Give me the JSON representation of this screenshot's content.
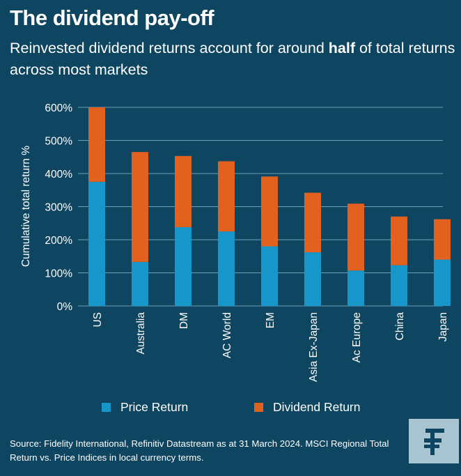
{
  "header": {
    "title": "The dividend pay-off",
    "subtitle_pre": "Reinvested dividend returns account for around ",
    "subtitle_bold": "half",
    "subtitle_post": " of total returns across most markets"
  },
  "chart_data": {
    "type": "bar",
    "stacked": true,
    "categories": [
      "US",
      "Australia",
      "DM",
      "AC World",
      "EM",
      "Asia Ex-Japan",
      "Ac Europe",
      "China",
      "Japan"
    ],
    "series": [
      {
        "name": "Price Return",
        "color": "#1797c9",
        "values": [
          375,
          133,
          238,
          225,
          180,
          162,
          107,
          123,
          140
        ]
      },
      {
        "name": "Dividend Return",
        "color": "#e2611f",
        "values": [
          225,
          332,
          215,
          212,
          211,
          180,
          202,
          147,
          122
        ]
      }
    ],
    "ylabel": "Cumulative total return %",
    "ylim": [
      0,
      600
    ],
    "yticks": [
      0,
      100,
      200,
      300,
      400,
      500,
      600
    ],
    "ytick_labels": [
      "0%",
      "100%",
      "200%",
      "300%",
      "400%",
      "500%",
      "600%"
    ],
    "grid": true,
    "legend_position": "bottom"
  },
  "footer": {
    "source": "Source: Fidelity International, Refinitiv Datastream as at 31 March 2024. MSCI Regional Total Return vs. Price Indices in local currency terms."
  },
  "logo": {
    "icon": "fidelity-f-logo",
    "color": "#0e4560",
    "background": "#a9c5d2"
  }
}
